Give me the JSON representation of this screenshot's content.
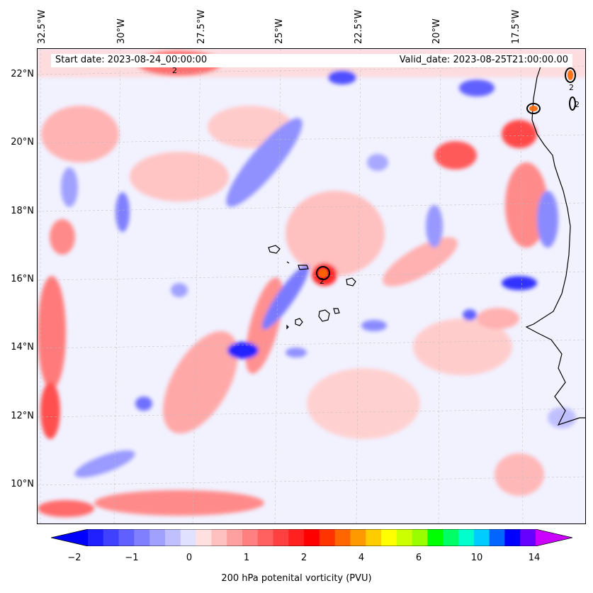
{
  "map": {
    "start_date": "Start date: 2023-08-24_00:00:00",
    "valid_date": "Valid_date: 2023-08-25T21:00:00.00",
    "lon_labels": [
      "32.5°W",
      "30°W",
      "27.5°W",
      "25°W",
      "22.5°W",
      "20°W",
      "17.5°W"
    ],
    "lat_labels": [
      "22°N",
      "20°N",
      "18°N",
      "16°N",
      "14°N",
      "12°N",
      "10°N"
    ],
    "contour_label": "2"
  },
  "colorbar": {
    "label": "200 hPa potenital vorticity (PVU)",
    "ticks": [
      "−2",
      "−1",
      "0",
      "1",
      "2",
      "4",
      "6",
      "10",
      "14"
    ],
    "colors": [
      "#0000ff",
      "#2020ff",
      "#4040ff",
      "#6060ff",
      "#8080ff",
      "#a0a0ff",
      "#c0c0ff",
      "#e0e0ff",
      "#ffe0e0",
      "#ffc0c0",
      "#ffa0a0",
      "#ff8080",
      "#ff6060",
      "#ff4040",
      "#ff2020",
      "#ff0000",
      "#ff3300",
      "#ff6600",
      "#ff9900",
      "#ffcc00",
      "#ffff00",
      "#ccff00",
      "#99ff00",
      "#00ff00",
      "#00ff66",
      "#00ffcc",
      "#00ccff",
      "#0066ff",
      "#0000ff",
      "#6600ff",
      "#cc00ff"
    ]
  }
}
